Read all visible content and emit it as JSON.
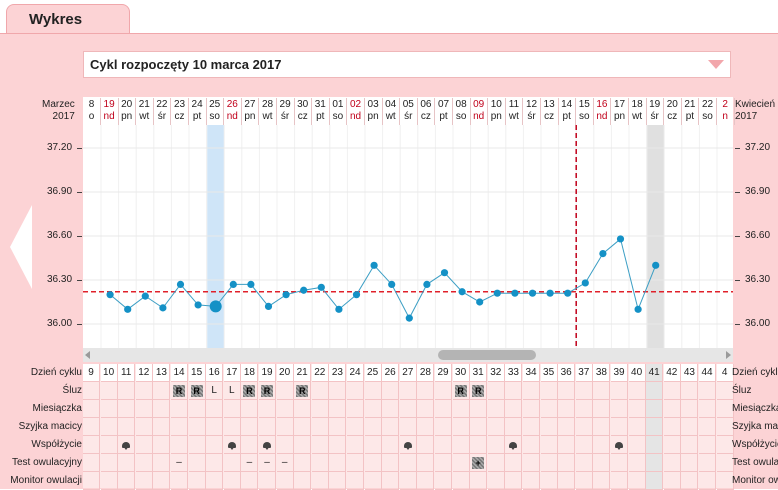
{
  "tab": {
    "label": "Wykres"
  },
  "cycle_select": {
    "value": "Cykl rozpoczęty 10 marca 2017"
  },
  "header": {
    "left_month": "Marzec",
    "left_year": "2017",
    "right_month": "Kwiecień",
    "right_year": "2017"
  },
  "dates": [
    {
      "d": "8",
      "w": "o",
      "red": false
    },
    {
      "d": "19",
      "w": "nd",
      "red": true
    },
    {
      "d": "20",
      "w": "pn",
      "red": false
    },
    {
      "d": "21",
      "w": "wt",
      "red": false
    },
    {
      "d": "22",
      "w": "śr",
      "red": false
    },
    {
      "d": "23",
      "w": "cz",
      "red": false
    },
    {
      "d": "24",
      "w": "pt",
      "red": false
    },
    {
      "d": "25",
      "w": "so",
      "red": false
    },
    {
      "d": "26",
      "w": "nd",
      "red": true
    },
    {
      "d": "27",
      "w": "pn",
      "red": false
    },
    {
      "d": "28",
      "w": "wt",
      "red": false
    },
    {
      "d": "29",
      "w": "śr",
      "red": false
    },
    {
      "d": "30",
      "w": "cz",
      "red": false
    },
    {
      "d": "31",
      "w": "pt",
      "red": false
    },
    {
      "d": "01",
      "w": "so",
      "red": false
    },
    {
      "d": "02",
      "w": "nd",
      "red": true
    },
    {
      "d": "03",
      "w": "pn",
      "red": false
    },
    {
      "d": "04",
      "w": "wt",
      "red": false
    },
    {
      "d": "05",
      "w": "śr",
      "red": false
    },
    {
      "d": "06",
      "w": "cz",
      "red": false
    },
    {
      "d": "07",
      "w": "pt",
      "red": false
    },
    {
      "d": "08",
      "w": "so",
      "red": false
    },
    {
      "d": "09",
      "w": "nd",
      "red": true
    },
    {
      "d": "10",
      "w": "pn",
      "red": false
    },
    {
      "d": "11",
      "w": "wt",
      "red": false
    },
    {
      "d": "12",
      "w": "śr",
      "red": false
    },
    {
      "d": "13",
      "w": "cz",
      "red": false
    },
    {
      "d": "14",
      "w": "pt",
      "red": false
    },
    {
      "d": "15",
      "w": "so",
      "red": false
    },
    {
      "d": "16",
      "w": "nd",
      "red": true
    },
    {
      "d": "17",
      "w": "pn",
      "red": false
    },
    {
      "d": "18",
      "w": "wt",
      "red": false
    },
    {
      "d": "19",
      "w": "śr",
      "red": false
    },
    {
      "d": "20",
      "w": "cz",
      "red": false
    },
    {
      "d": "21",
      "w": "pt",
      "red": false
    },
    {
      "d": "22",
      "w": "so",
      "red": false
    },
    {
      "d": "2",
      "w": "n",
      "red": true
    }
  ],
  "chart_data": {
    "type": "line",
    "ylim": [
      35.88,
      37.26
    ],
    "yticks": [
      "37.20",
      "36.90",
      "36.60",
      "36.30",
      "36.00"
    ],
    "coverline": 36.22,
    "ovulation_day_index": 27,
    "highlight_day_index": 7,
    "today_day_index": 32,
    "series": [
      {
        "values": [
          null,
          36.2,
          36.1,
          36.19,
          36.11,
          36.27,
          36.13,
          36.12,
          36.27,
          36.27,
          36.12,
          36.2,
          36.23,
          36.25,
          36.1,
          36.2,
          36.4,
          36.27,
          36.04,
          36.27,
          36.35,
          36.22,
          36.15,
          36.21,
          36.21,
          36.21,
          36.21,
          36.21,
          36.28,
          36.48,
          36.58,
          36.1,
          36.4,
          null,
          null,
          null,
          null
        ]
      }
    ]
  },
  "rows": {
    "labels": [
      "Dzień cyklu",
      "Śluz",
      "Miesiączka",
      "Szyjka macicy",
      "Współżycie",
      "Test owulacyjny",
      "Monitor owulacji"
    ],
    "cycle_days": [
      "9",
      "10",
      "11",
      "12",
      "13",
      "14",
      "15",
      "16",
      "17",
      "18",
      "19",
      "20",
      "21",
      "22",
      "23",
      "24",
      "25",
      "26",
      "27",
      "28",
      "29",
      "30",
      "31",
      "32",
      "33",
      "34",
      "35",
      "36",
      "37",
      "38",
      "39",
      "40",
      "41",
      "42",
      "43",
      "44",
      "4"
    ],
    "sluz": [
      "",
      "",
      "",
      "",
      "",
      "R",
      "R",
      "L",
      "L",
      "R",
      "R",
      "",
      "R",
      "",
      "",
      "",
      "",
      "",
      "",
      "",
      "",
      "R",
      "R",
      "",
      "",
      "",
      "",
      "",
      "",
      "",
      "",
      "",
      "",
      "",
      "",
      "",
      ""
    ],
    "wspolzycie": [
      "",
      "",
      "x",
      "",
      "",
      "",
      "",
      "",
      "x",
      "",
      "x",
      "",
      "",
      "",
      "",
      "",
      "",
      "",
      "x",
      "",
      "",
      "",
      "",
      "",
      "x",
      "",
      "",
      "",
      "",
      "",
      "x",
      "",
      "",
      "",
      "",
      "",
      ""
    ],
    "test": [
      "",
      "",
      "",
      "",
      "",
      "–",
      "",
      "",
      "",
      "–",
      "–",
      "–",
      "",
      "",
      "",
      "",
      "",
      "",
      "",
      "",
      "",
      "",
      "+",
      "",
      "",
      "",
      "",
      "",
      "",
      "",
      "",
      "",
      "",
      "",
      "",
      "",
      ""
    ]
  },
  "colors": {
    "panel": "#fcd3d5",
    "line": "#3b9ec4",
    "point": "#1491c6",
    "coverline": "#e0202a",
    "ovulation": "#c0001a"
  }
}
